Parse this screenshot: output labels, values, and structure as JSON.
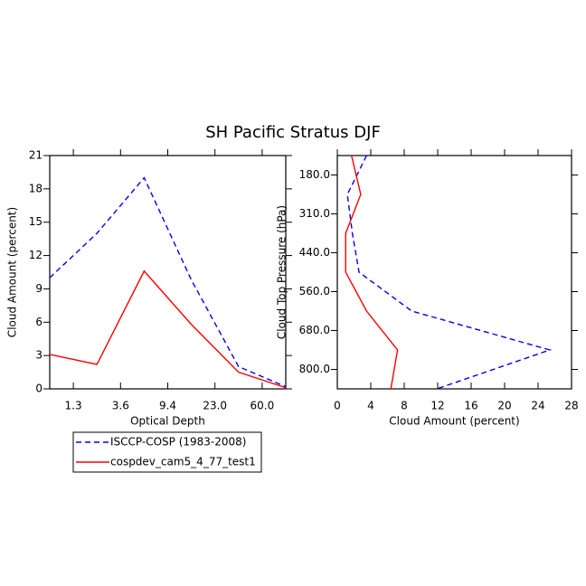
{
  "title": "SH Pacific Stratus DJF",
  "chart_data": [
    {
      "type": "line",
      "xlabel": "Optical Depth",
      "ylabel": "Cloud Amount (percent)",
      "x": [
        0,
        1,
        2,
        3,
        4,
        5
      ],
      "xlim": [
        0,
        5
      ],
      "xticks": [
        {
          "value": 0.5,
          "label": "1.3"
        },
        {
          "value": 1.5,
          "label": "3.6"
        },
        {
          "value": 2.5,
          "label": "9.4"
        },
        {
          "value": 3.5,
          "label": "23.0"
        },
        {
          "value": 4.5,
          "label": "60.0"
        }
      ],
      "ylim": [
        0,
        21
      ],
      "yticks": [
        0,
        3,
        6,
        9,
        12,
        15,
        18,
        21
      ],
      "series": [
        {
          "name": "ISCCP-COSP (1983-2008)",
          "color": "#0000ff",
          "dash": "6,4",
          "values": [
            10,
            14,
            19,
            9.8,
            2,
            0.2
          ]
        },
        {
          "name": "cospdev_cam5_4_77_test1",
          "color": "#ff0000",
          "values": [
            3.1,
            2.2,
            10.6,
            5.8,
            1.5,
            0.1
          ]
        }
      ]
    },
    {
      "type": "line",
      "orientation": "horizontal",
      "xlabel": "Cloud Amount (percent)",
      "ylabel": "Cloud Top Pressure (hPa)",
      "y": [
        0,
        1,
        2,
        3,
        4,
        5,
        6
      ],
      "ylim": [
        6,
        0
      ],
      "yticks": [
        {
          "value": 0.5,
          "label": "180.0"
        },
        {
          "value": 1.5,
          "label": "310.0"
        },
        {
          "value": 2.5,
          "label": "440.0"
        },
        {
          "value": 3.5,
          "label": "560.0"
        },
        {
          "value": 4.5,
          "label": "680.0"
        },
        {
          "value": 5.5,
          "label": "800.0"
        }
      ],
      "xlim": [
        0,
        28
      ],
      "xticks": [
        0,
        4,
        8,
        12,
        16,
        20,
        24,
        28
      ],
      "series": [
        {
          "color": "#0000ff",
          "dash": "6,4",
          "values": [
            3.5,
            1.2,
            1.8,
            2.6,
            8.9,
            25.4,
            11.9
          ]
        },
        {
          "color": "#ff0000",
          "values": [
            1.7,
            2.8,
            1.0,
            1.0,
            3.5,
            7.2,
            6.4
          ]
        }
      ]
    }
  ]
}
